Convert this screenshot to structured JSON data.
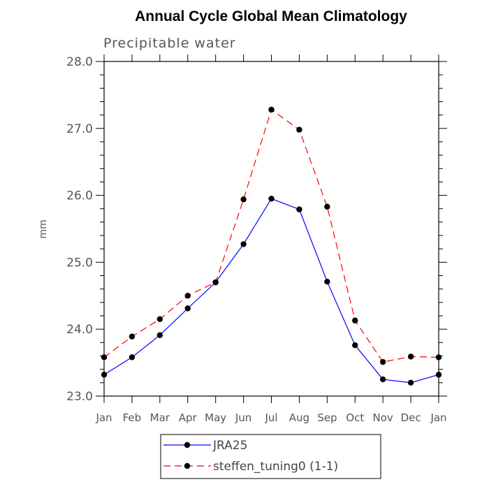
{
  "chart_data": {
    "type": "line",
    "title": "Annual Cycle Global Mean Climatology",
    "subtitle": "Precipitable water",
    "ylabel": "mm",
    "xlabel": "",
    "categories": [
      "Jan",
      "Feb",
      "Mar",
      "Apr",
      "May",
      "Jun",
      "Jul",
      "Aug",
      "Sep",
      "Oct",
      "Nov",
      "Dec",
      "Jan"
    ],
    "ylim": [
      23.0,
      28.0
    ],
    "yticks": [
      "23.0",
      "24.0",
      "25.0",
      "26.0",
      "27.0",
      "28.0"
    ],
    "grid": false,
    "legend_position": "bottom",
    "series": [
      {
        "name": "JRA25",
        "color": "#0000ff",
        "dash": "solid",
        "values": [
          23.32,
          23.58,
          23.91,
          24.31,
          24.7,
          25.27,
          25.95,
          25.79,
          24.71,
          23.76,
          23.25,
          23.2,
          23.32
        ]
      },
      {
        "name": "steffen_tuning0 (1-1)",
        "color": "#ff0000",
        "dash": "dashed",
        "values": [
          23.58,
          23.89,
          24.15,
          24.5,
          24.7,
          25.94,
          27.28,
          26.98,
          25.83,
          24.13,
          23.51,
          23.59,
          23.58
        ]
      }
    ]
  }
}
